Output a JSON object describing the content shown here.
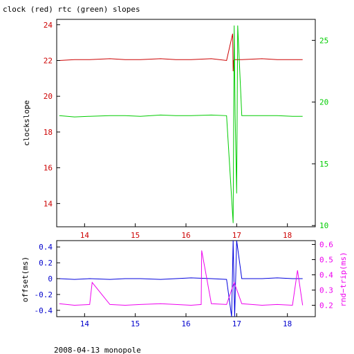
{
  "chart_data": [
    {
      "type": "line",
      "title": "clock (red) rtc (green) slopes",
      "xlabel": "",
      "ylabel": "clockslope",
      "xlim": [
        13.45,
        18.55
      ],
      "ylim": [
        12.7,
        24.3
      ],
      "y2lim": [
        9.9,
        26.7
      ],
      "x_ticks": [
        14,
        15,
        16,
        17,
        18
      ],
      "y_ticks": [
        14,
        16,
        18,
        20,
        22,
        24
      ],
      "y2_ticks": [
        10,
        15,
        20,
        25
      ],
      "grid": false,
      "colors": {
        "axis": "#000000",
        "left_axis": "#cc0000",
        "right_axis": "#00cc00",
        "bottom_axis": "#cc0000"
      },
      "series": [
        {
          "color": "#cc0000",
          "axis": "left",
          "x": [
            13.5,
            13.8,
            14.1,
            14.5,
            14.8,
            15.1,
            15.5,
            15.8,
            16.1,
            16.5,
            16.8,
            16.92,
            16.93,
            16.94,
            16.95,
            17.1,
            17.5,
            17.8,
            18.1,
            18.3
          ],
          "y": [
            22.0,
            22.05,
            22.05,
            22.1,
            22.05,
            22.05,
            22.1,
            22.05,
            22.05,
            22.1,
            22.0,
            23.5,
            21.4,
            22.0,
            22.05,
            22.05,
            22.1,
            22.05,
            22.05,
            22.05
          ]
        },
        {
          "color": "#00cc00",
          "axis": "right",
          "x": [
            13.5,
            13.8,
            14.1,
            14.5,
            14.8,
            15.1,
            15.5,
            15.8,
            16.1,
            16.5,
            16.8,
            16.93,
            16.95,
            16.97,
            17.0,
            17.02,
            17.1,
            17.5,
            17.8,
            18.1,
            18.3
          ],
          "y": [
            18.9,
            18.8,
            18.85,
            18.9,
            18.9,
            18.85,
            18.95,
            18.9,
            18.9,
            18.95,
            18.9,
            10.2,
            26.2,
            18.9,
            12.6,
            26.2,
            18.9,
            18.9,
            18.9,
            18.85,
            18.85
          ]
        }
      ]
    },
    {
      "type": "line",
      "title": "",
      "xlabel": "",
      "ylabel": "offset(ms)",
      "y2label": "rnd−trip(ms)",
      "xlim": [
        13.45,
        18.55
      ],
      "ylim": [
        -0.48,
        0.48
      ],
      "y2lim": [
        0.125,
        0.625
      ],
      "x_ticks": [
        14,
        15,
        16,
        17,
        18
      ],
      "y_ticks": [
        -0.4,
        -0.2,
        0,
        0.2,
        0.4
      ],
      "y2_ticks": [
        0.2,
        0.3,
        0.4,
        0.5,
        0.6
      ],
      "grid": false,
      "colors": {
        "axis": "#000000",
        "left_axis": "#0000cc",
        "right_axis": "#ee00ee",
        "bottom_axis": "#0000cc"
      },
      "series": [
        {
          "color": "#0000dd",
          "axis": "left",
          "x": [
            13.5,
            13.8,
            14.1,
            14.5,
            14.8,
            15.1,
            15.5,
            15.8,
            16.1,
            16.5,
            16.8,
            16.9,
            16.93,
            16.96,
            17.0,
            17.1,
            17.5,
            17.8,
            18.1,
            18.3
          ],
          "y": [
            0.0,
            -0.01,
            0.0,
            -0.01,
            0.0,
            0.0,
            -0.01,
            0.0,
            0.01,
            0.0,
            -0.01,
            -0.48,
            0.48,
            -0.48,
            0.48,
            0.0,
            0.0,
            0.01,
            0.0,
            0.0
          ]
        },
        {
          "color": "#ee00ee",
          "axis": "right",
          "x": [
            13.5,
            13.8,
            14.1,
            14.15,
            14.5,
            14.8,
            15.1,
            15.5,
            15.8,
            16.1,
            16.3,
            16.31,
            16.5,
            16.8,
            16.95,
            17.1,
            17.5,
            17.8,
            18.1,
            18.2,
            18.3
          ],
          "y": [
            0.21,
            0.2,
            0.205,
            0.35,
            0.205,
            0.2,
            0.205,
            0.21,
            0.205,
            0.2,
            0.205,
            0.56,
            0.21,
            0.205,
            0.35,
            0.21,
            0.2,
            0.205,
            0.2,
            0.43,
            0.2
          ]
        }
      ]
    }
  ],
  "footer": "2008-04-13 monopole"
}
